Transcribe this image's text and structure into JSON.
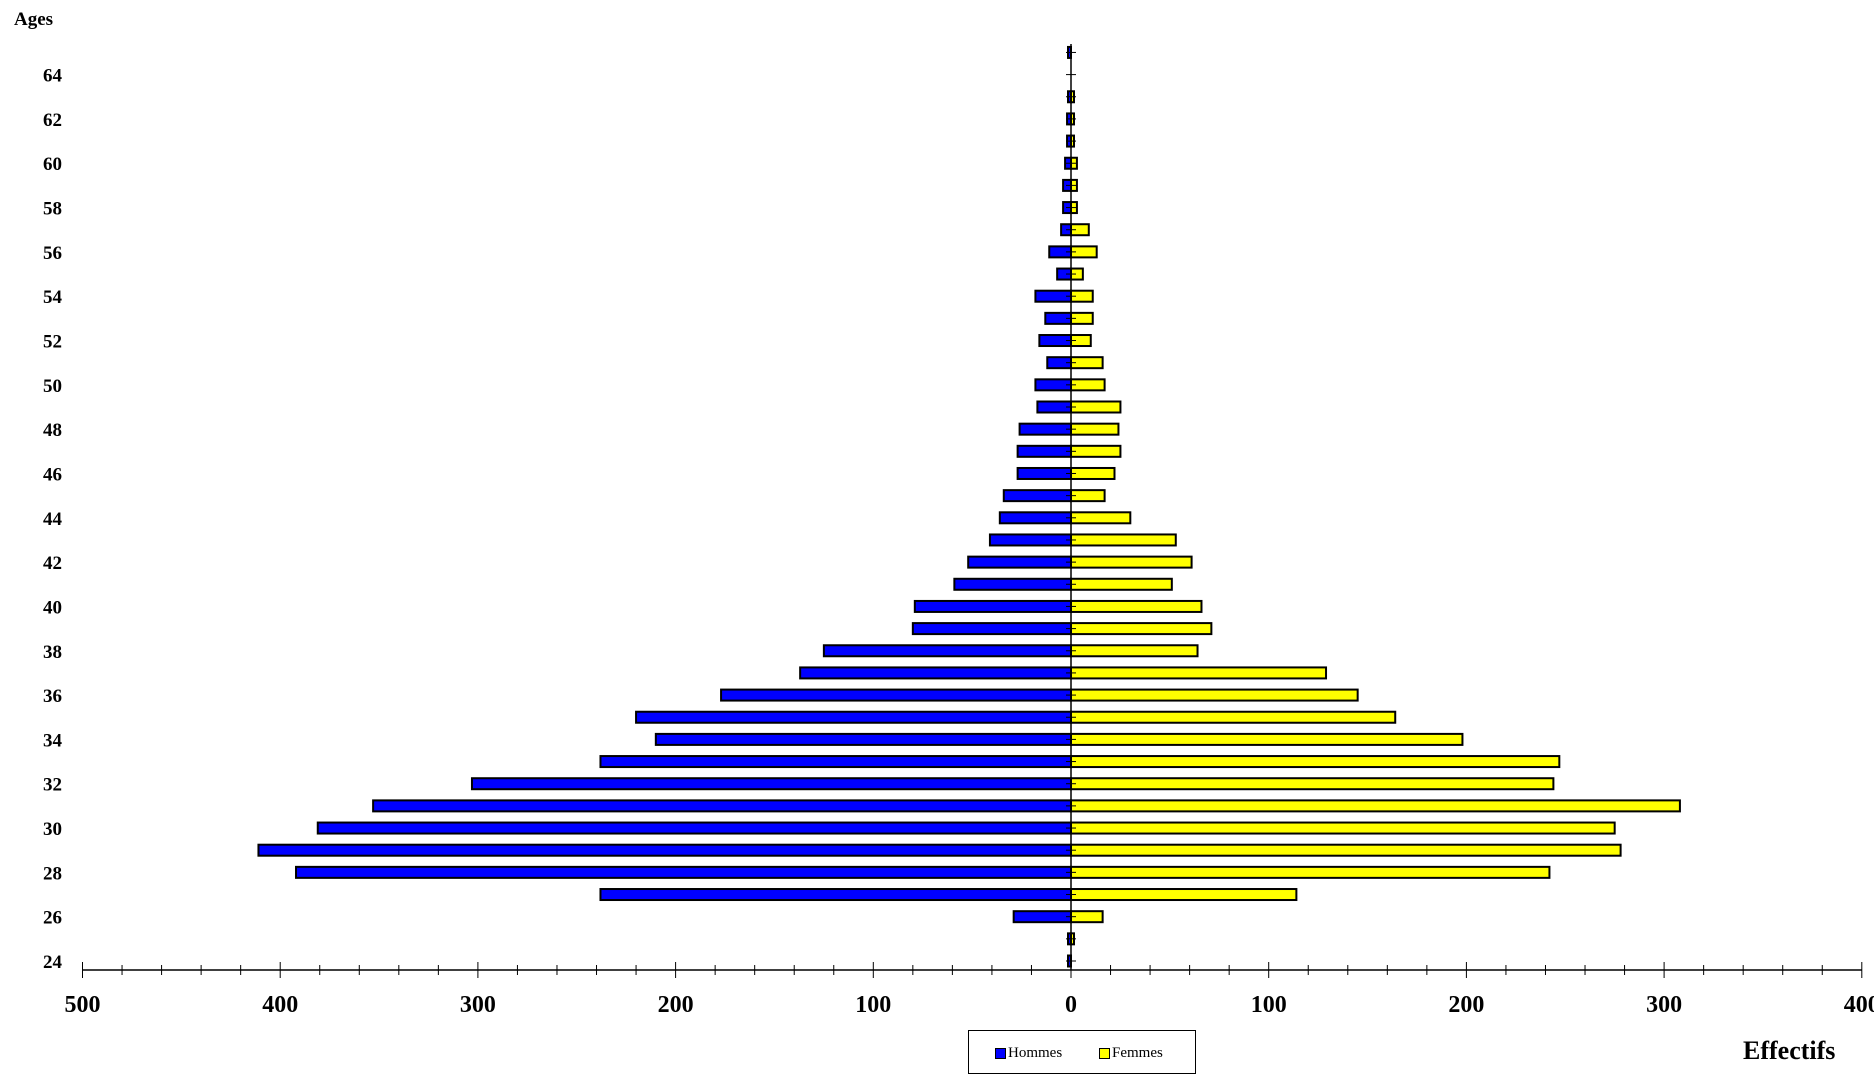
{
  "chart_data": {
    "type": "bar",
    "orientation": "horizontal-population-pyramid",
    "title": "",
    "xlabel": "Effectifs",
    "ylabel": "Ages",
    "x_ticks_left": [
      "500",
      "400",
      "300",
      "200",
      "100",
      "0"
    ],
    "x_ticks_right": [
      "100",
      "200",
      "300",
      "400"
    ],
    "y_ticks": [
      "24",
      "26",
      "28",
      "30",
      "32",
      "34",
      "36",
      "38",
      "40",
      "42",
      "44",
      "46",
      "48",
      "50",
      "52",
      "54",
      "56",
      "58",
      "60",
      "62",
      "64"
    ],
    "xlim_left": [
      0,
      500
    ],
    "xlim_right": [
      0,
      400
    ],
    "ylim": [
      24,
      65
    ],
    "legend_position": "bottom-center",
    "categories": [
      24,
      25,
      26,
      27,
      28,
      29,
      30,
      31,
      32,
      33,
      34,
      35,
      36,
      37,
      38,
      39,
      40,
      41,
      42,
      43,
      44,
      45,
      46,
      47,
      48,
      49,
      50,
      51,
      52,
      53,
      54,
      55,
      56,
      57,
      58,
      59,
      60,
      61,
      62,
      63,
      64,
      65
    ],
    "series": [
      {
        "name": "Hommes",
        "color": "#0000ff",
        "values": [
          1,
          1,
          29,
          238,
          392,
          411,
          381,
          353,
          303,
          238,
          210,
          220,
          177,
          137,
          125,
          80,
          79,
          59,
          52,
          41,
          36,
          34,
          27,
          27,
          26,
          17,
          18,
          12,
          16,
          13,
          18,
          7,
          11,
          5,
          4,
          4,
          3,
          2,
          2,
          1,
          0,
          1
        ]
      },
      {
        "name": "Femmes",
        "color": "#ffff00",
        "values": [
          0,
          1,
          16,
          114,
          242,
          278,
          275,
          308,
          244,
          247,
          198,
          164,
          145,
          129,
          64,
          71,
          66,
          51,
          61,
          53,
          30,
          17,
          22,
          25,
          24,
          25,
          17,
          16,
          10,
          11,
          11,
          6,
          13,
          9,
          3,
          3,
          3,
          1,
          1,
          1,
          0,
          0
        ]
      }
    ]
  }
}
